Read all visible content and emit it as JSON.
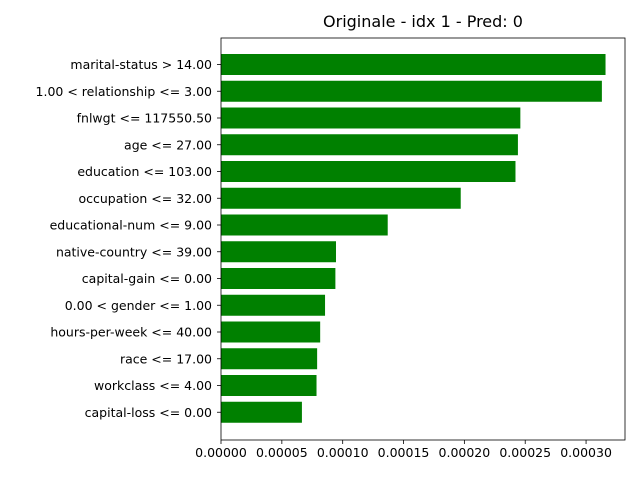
{
  "chart_data": {
    "type": "bar",
    "orientation": "horizontal",
    "title": "Originale - idx 1 - Pred: 0",
    "xlabel": "",
    "ylabel": "",
    "xlim": [
      0,
      0.000332
    ],
    "xticks": [
      0.0,
      5e-05,
      0.0001,
      0.00015,
      0.0002,
      0.00025,
      0.0003
    ],
    "xtick_labels": [
      "0.00000",
      "0.00005",
      "0.00010",
      "0.00015",
      "0.00020",
      "0.00025",
      "0.00030"
    ],
    "grid": false,
    "bar_color": "#008000",
    "categories": [
      "marital-status > 14.00",
      "1.00 < relationship <= 3.00",
      "fnlwgt <= 117550.50",
      "age <= 27.00",
      "education <= 103.00",
      "occupation <= 32.00",
      "educational-num <= 9.00",
      "native-country <= 39.00",
      "capital-gain <= 0.00",
      "0.00 < gender <= 1.00",
      "hours-per-week <= 40.00",
      "race <= 17.00",
      "workclass <= 4.00",
      "capital-loss <= 0.00"
    ],
    "values": [
      0.000316,
      0.000313,
      0.000246,
      0.000244,
      0.000242,
      0.000197,
      0.000137,
      9.45e-05,
      9.4e-05,
      8.55e-05,
      8.15e-05,
      7.9e-05,
      7.85e-05,
      6.65e-05
    ]
  }
}
